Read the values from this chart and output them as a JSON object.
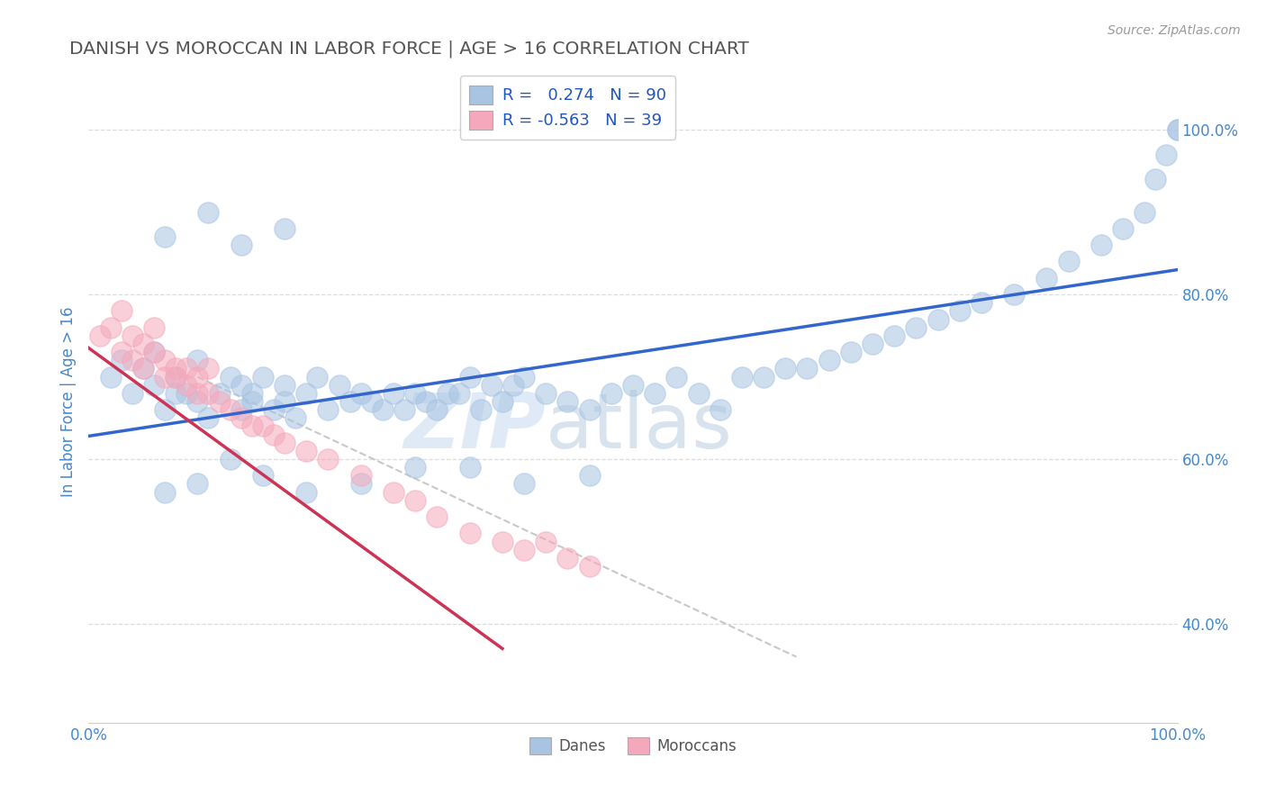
{
  "title": "DANISH VS MOROCCAN IN LABOR FORCE | AGE > 16 CORRELATION CHART",
  "source": "Source: ZipAtlas.com",
  "xlim": [
    0.0,
    1.0
  ],
  "ylim": [
    0.28,
    1.06
  ],
  "legend_line1": "R =   0.274   N = 90",
  "legend_line2": "R = -0.563   N = 39",
  "danes_color": "#a8c4e2",
  "moroccans_color": "#f5a8bb",
  "danes_line_color": "#3366cc",
  "moroccans_line_color": "#cc3355",
  "dashed_line_color": "#c8c8c8",
  "background_color": "#ffffff",
  "grid_color": "#dddddd",
  "title_color": "#555555",
  "tick_color": "#4488cc",
  "watermark_text": "ZIP",
  "watermark_text2": "atlas",
  "danes_scatter_x": [
    0.02,
    0.03,
    0.04,
    0.05,
    0.06,
    0.06,
    0.07,
    0.08,
    0.08,
    0.09,
    0.1,
    0.1,
    0.11,
    0.12,
    0.13,
    0.14,
    0.14,
    0.15,
    0.15,
    0.16,
    0.17,
    0.18,
    0.18,
    0.19,
    0.2,
    0.21,
    0.22,
    0.23,
    0.24,
    0.25,
    0.26,
    0.27,
    0.28,
    0.29,
    0.3,
    0.31,
    0.32,
    0.33,
    0.34,
    0.35,
    0.36,
    0.37,
    0.38,
    0.39,
    0.4,
    0.42,
    0.44,
    0.46,
    0.48,
    0.5,
    0.52,
    0.54,
    0.56,
    0.58,
    0.6,
    0.62,
    0.64,
    0.66,
    0.68,
    0.7,
    0.72,
    0.74,
    0.76,
    0.78,
    0.8,
    0.82,
    0.85,
    0.88,
    0.9,
    0.93,
    0.95,
    0.97,
    0.98,
    0.99,
    1.0,
    1.0,
    0.07,
    0.1,
    0.13,
    0.16,
    0.2,
    0.25,
    0.3,
    0.35,
    0.4,
    0.46,
    0.07,
    0.11,
    0.14,
    0.18
  ],
  "danes_scatter_y": [
    0.7,
    0.72,
    0.68,
    0.71,
    0.69,
    0.73,
    0.66,
    0.7,
    0.68,
    0.68,
    0.67,
    0.72,
    0.65,
    0.68,
    0.7,
    0.66,
    0.69,
    0.67,
    0.68,
    0.7,
    0.66,
    0.69,
    0.67,
    0.65,
    0.68,
    0.7,
    0.66,
    0.69,
    0.67,
    0.68,
    0.67,
    0.66,
    0.68,
    0.66,
    0.68,
    0.67,
    0.66,
    0.68,
    0.68,
    0.7,
    0.66,
    0.69,
    0.67,
    0.69,
    0.7,
    0.68,
    0.67,
    0.66,
    0.68,
    0.69,
    0.68,
    0.7,
    0.68,
    0.66,
    0.7,
    0.7,
    0.71,
    0.71,
    0.72,
    0.73,
    0.74,
    0.75,
    0.76,
    0.77,
    0.78,
    0.79,
    0.8,
    0.82,
    0.84,
    0.86,
    0.88,
    0.9,
    0.94,
    0.97,
    1.0,
    1.0,
    0.56,
    0.57,
    0.6,
    0.58,
    0.56,
    0.57,
    0.59,
    0.59,
    0.57,
    0.58,
    0.87,
    0.9,
    0.86,
    0.88
  ],
  "moroccans_scatter_x": [
    0.01,
    0.02,
    0.03,
    0.03,
    0.04,
    0.04,
    0.05,
    0.05,
    0.06,
    0.06,
    0.07,
    0.07,
    0.08,
    0.08,
    0.09,
    0.09,
    0.1,
    0.1,
    0.11,
    0.11,
    0.12,
    0.13,
    0.14,
    0.15,
    0.16,
    0.17,
    0.18,
    0.2,
    0.22,
    0.25,
    0.28,
    0.3,
    0.32,
    0.35,
    0.38,
    0.4,
    0.42,
    0.44,
    0.46
  ],
  "moroccans_scatter_y": [
    0.75,
    0.76,
    0.73,
    0.78,
    0.72,
    0.75,
    0.71,
    0.74,
    0.73,
    0.76,
    0.7,
    0.72,
    0.7,
    0.71,
    0.69,
    0.71,
    0.68,
    0.7,
    0.68,
    0.71,
    0.67,
    0.66,
    0.65,
    0.64,
    0.64,
    0.63,
    0.62,
    0.61,
    0.6,
    0.58,
    0.56,
    0.55,
    0.53,
    0.51,
    0.5,
    0.49,
    0.5,
    0.48,
    0.47
  ],
  "danes_line": [
    0.0,
    0.628,
    1.0,
    0.83
  ],
  "moroccans_line": [
    0.0,
    0.735,
    0.38,
    0.37
  ],
  "dashed_line": [
    0.1,
    0.7,
    0.65,
    0.36
  ],
  "yticks": [
    0.4,
    0.6,
    0.8,
    1.0
  ],
  "ytick_labels": [
    "40.0%",
    "60.0%",
    "80.0%",
    "100.0%"
  ],
  "xticks": [
    0.0,
    1.0
  ],
  "xtick_labels": [
    "0.0%",
    "100.0%"
  ],
  "ylabel": "In Labor Force | Age > 16"
}
